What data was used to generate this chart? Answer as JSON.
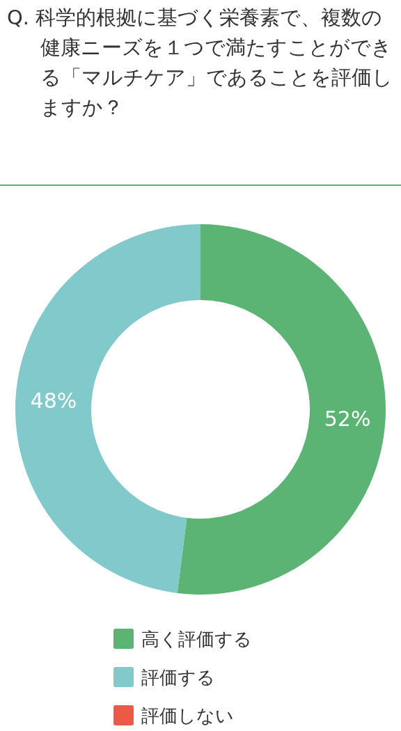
{
  "chart_data": {
    "type": "donut",
    "title": "Q. 科学的根拠に基づく栄養素で、複数の健康ニーズを１つで満たすことができる「マルチケア」であることを評価しますか？",
    "categories": [
      "高く評価する",
      "評価する",
      "評価しない"
    ],
    "values": [
      52,
      48,
      0
    ],
    "colors": [
      "#5bb374",
      "#82c9cb",
      "#ea5a44"
    ],
    "value_labels": [
      "52%",
      "48%",
      null
    ],
    "legend": "bottom"
  }
}
